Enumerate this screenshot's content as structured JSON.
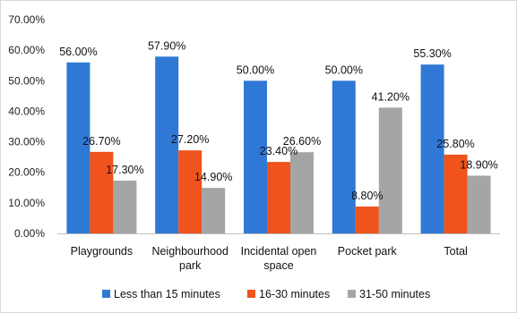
{
  "chart_data": {
    "type": "bar",
    "title": "",
    "xlabel": "",
    "ylabel": "",
    "ylim": [
      0,
      70
    ],
    "yticks": [
      0,
      10,
      20,
      30,
      40,
      50,
      60,
      70
    ],
    "y_tick_labels": [
      "0.00%",
      "10.00%",
      "20.00%",
      "30.00%",
      "40.00%",
      "50.00%",
      "60.00%",
      "70.00%"
    ],
    "grid": false,
    "legend_position": "bottom",
    "categories": [
      [
        "Playgrounds"
      ],
      [
        "Neighbourhood",
        "park"
      ],
      [
        "Incidental open",
        "space"
      ],
      [
        "Pocket park"
      ],
      [
        "Total"
      ]
    ],
    "series": [
      {
        "name": "Less than 15 minutes",
        "color": "#2f78d6",
        "values": [
          56.0,
          57.9,
          50.0,
          50.0,
          55.3
        ],
        "labels": [
          "56.00%",
          "57.90%",
          "50.00%",
          "50.00%",
          "55.30%"
        ]
      },
      {
        "name": "16-30 minutes",
        "color": "#f0531c",
        "values": [
          26.7,
          27.2,
          23.4,
          8.8,
          25.8
        ],
        "labels": [
          "26.70%",
          "27.20%",
          "23.40%",
          "8.80%",
          "25.80%"
        ]
      },
      {
        "name": "31-50 minutes",
        "color": "#a5a5a5",
        "values": [
          17.3,
          14.9,
          26.6,
          41.2,
          18.9
        ],
        "labels": [
          "17.30%",
          "14.90%",
          "26.60%",
          "41.20%",
          "18.90%"
        ]
      }
    ]
  }
}
